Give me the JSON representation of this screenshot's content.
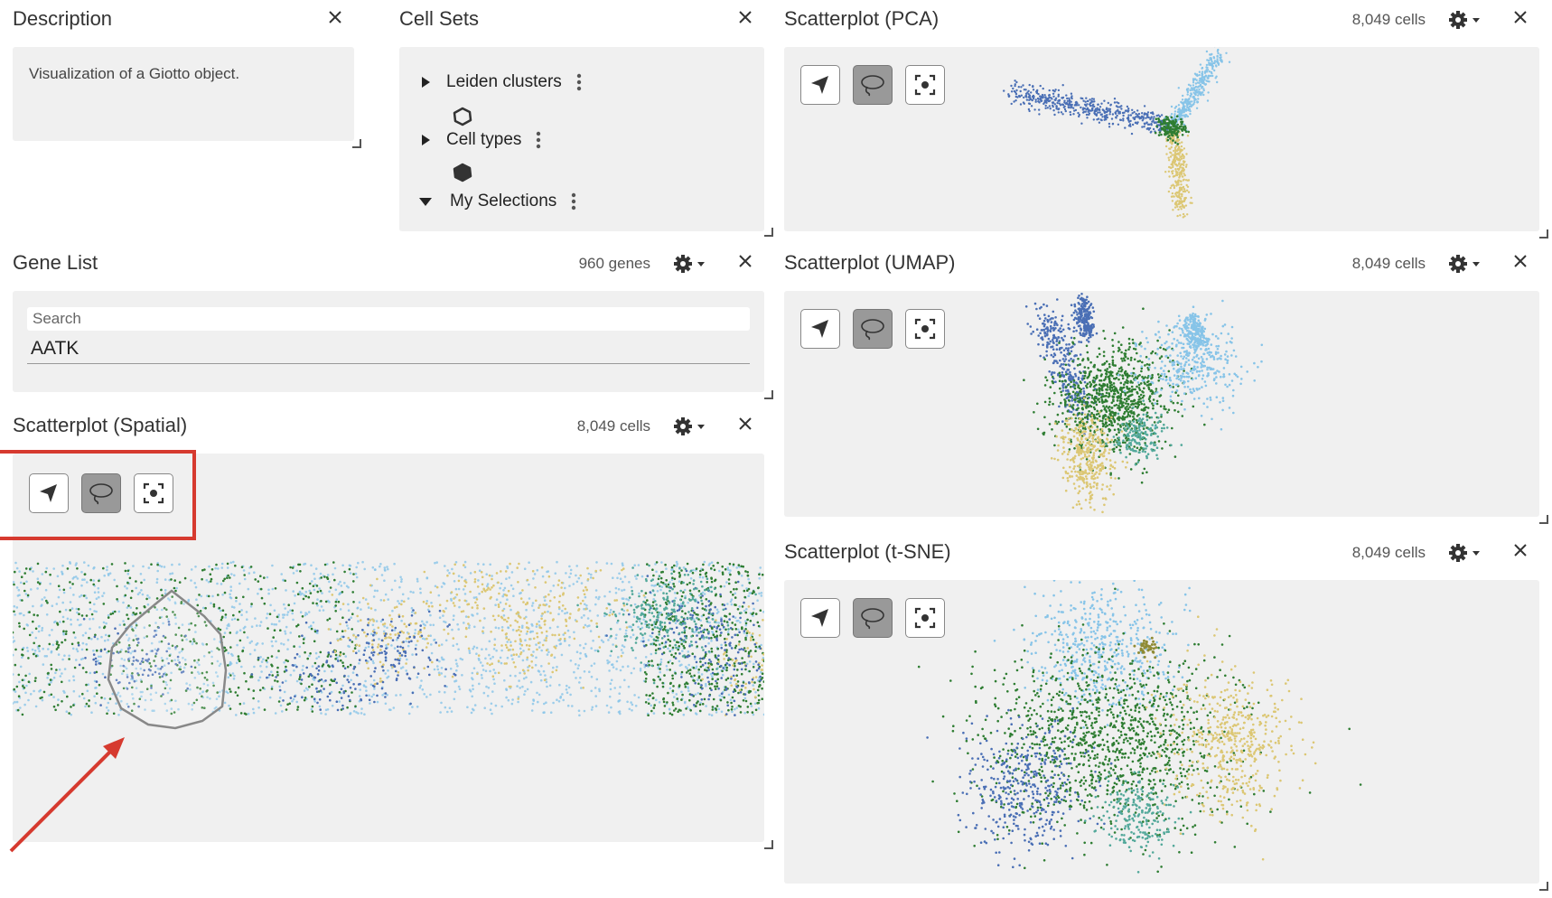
{
  "description": {
    "title": "Description",
    "text": "Visualization of a Giotto object."
  },
  "cell_sets": {
    "title": "Cell Sets",
    "items": [
      {
        "label": "Leiden clusters",
        "expanded": false
      },
      {
        "label": "Cell types",
        "expanded": false
      },
      {
        "label": "My Selections",
        "expanded": true
      }
    ]
  },
  "gene_list": {
    "title": "Gene List",
    "count": "960 genes",
    "search_placeholder": "Search",
    "items": [
      "AATK"
    ]
  },
  "scatter_spatial": {
    "title": "Scatterplot (Spatial)",
    "count": "8,049 cells"
  },
  "scatter_pca": {
    "title": "Scatterplot (PCA)",
    "count": "8,049 cells"
  },
  "scatter_umap": {
    "title": "Scatterplot (UMAP)",
    "count": "8,049 cells"
  },
  "scatter_tsne": {
    "title": "Scatterplot (t-SNE)",
    "count": "8,049 cells"
  },
  "tools": [
    "pointer-tool",
    "lasso-tool",
    "recenter-tool"
  ],
  "active_tool": "lasso-tool",
  "colors": {
    "panel_bg": "#f0f0f0",
    "cluster_darkgreen": "#2e7d32",
    "cluster_lightblue": "#87c4e8",
    "cluster_blue": "#4a6fb5",
    "cluster_yellow": "#dcc774",
    "cluster_teal": "#52a89a",
    "annotation_red": "#d63a2f"
  }
}
